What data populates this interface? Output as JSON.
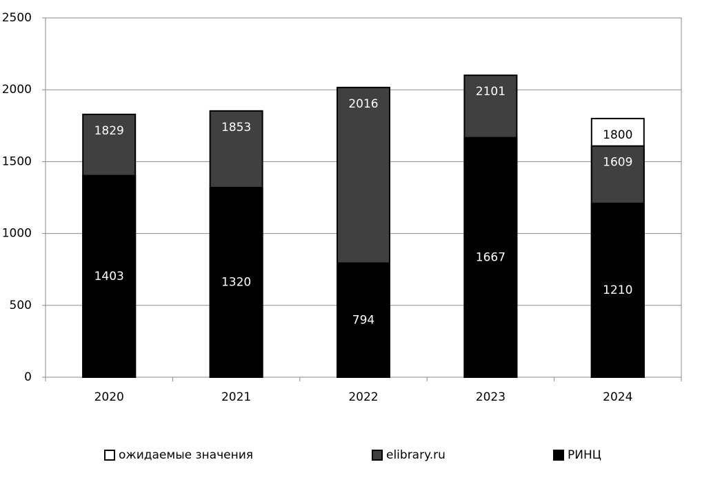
{
  "chart_data": {
    "type": "bar",
    "categories": [
      "2020",
      "2021",
      "2022",
      "2023",
      "2024"
    ],
    "series": [
      {
        "name": "ожидаемые значения",
        "color": "#ffffff",
        "values": [
          null,
          null,
          null,
          null,
          1800
        ]
      },
      {
        "name": "elibrary.ru",
        "color": "#404040",
        "values": [
          1829,
          1853,
          2016,
          2101,
          1609
        ]
      },
      {
        "name": "РИНЦ",
        "color": "#000000",
        "values": [
          1403,
          1320,
          794,
          1667,
          1210
        ]
      }
    ],
    "ylim": [
      0,
      2500
    ],
    "yticks": [
      0,
      500,
      1000,
      1500,
      2000,
      2500
    ],
    "grid": true,
    "legend": "bottom"
  }
}
